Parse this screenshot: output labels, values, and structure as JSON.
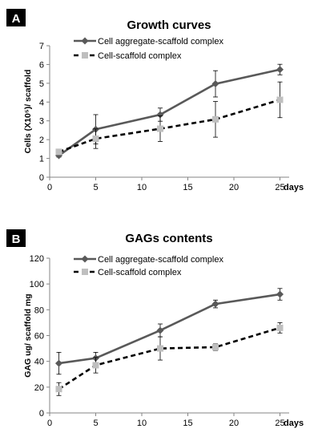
{
  "chart_data": [
    {
      "panel_label": "A",
      "type": "line",
      "title": "Growth curves",
      "xlabel": "days",
      "ylabel": "Cells (X10⁵)/ scaffold",
      "xlim": [
        0,
        26
      ],
      "ylim": [
        0,
        7
      ],
      "xticks": [
        0,
        5,
        10,
        15,
        20,
        25
      ],
      "yticks": [
        0,
        1,
        2,
        3,
        4,
        5,
        6,
        7
      ],
      "grid": false,
      "legend_position": "top-left",
      "series": [
        {
          "name": "Cell aggregate-scaffold complex",
          "style": "solid",
          "marker": "diamond",
          "color": "#595959",
          "x": [
            1,
            5,
            12,
            18,
            25
          ],
          "y": [
            1.15,
            2.55,
            3.33,
            4.97,
            5.73
          ],
          "err": [
            0.08,
            0.78,
            0.35,
            0.7,
            0.28
          ]
        },
        {
          "name": "Cell-scaffold complex",
          "style": "dashed",
          "marker": "square",
          "color": "#000000",
          "marker_color": "#bfbfbf",
          "x": [
            1,
            5,
            12,
            18,
            25
          ],
          "y": [
            1.35,
            2.05,
            2.58,
            3.08,
            4.12
          ],
          "err": [
            0.1,
            0.52,
            0.68,
            0.95,
            0.95
          ]
        }
      ]
    },
    {
      "panel_label": "B",
      "type": "line",
      "title": "GAGs contents",
      "xlabel": "days",
      "ylabel": "GAG ug/ scaffold mg",
      "xlim": [
        0,
        26
      ],
      "ylim": [
        0,
        120
      ],
      "xticks": [
        0,
        5,
        10,
        15,
        20,
        25
      ],
      "yticks": [
        0,
        20,
        40,
        60,
        80,
        100,
        120
      ],
      "grid": false,
      "legend_position": "top-left",
      "series": [
        {
          "name": "Cell aggregate-scaffold complex",
          "style": "solid",
          "marker": "diamond",
          "color": "#595959",
          "x": [
            1,
            5,
            12,
            18,
            25
          ],
          "y": [
            38.5,
            42.5,
            64,
            84.5,
            92
          ],
          "err": [
            8.5,
            4.5,
            5,
            3,
            4.5
          ]
        },
        {
          "name": "Cell-scaffold complex",
          "style": "dashed",
          "marker": "square",
          "color": "#000000",
          "marker_color": "#bfbfbf",
          "x": [
            1,
            5,
            12,
            18,
            25
          ],
          "y": [
            18.5,
            37,
            50,
            51,
            66
          ],
          "err": [
            5,
            6,
            9,
            2.5,
            4
          ]
        }
      ]
    }
  ]
}
